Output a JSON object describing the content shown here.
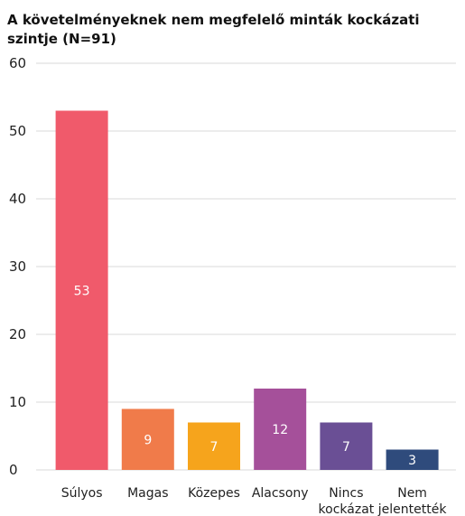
{
  "chart_data": {
    "type": "bar",
    "title": "A követelményeknek nem megfelelő minták kockázati szintje (N=91)",
    "categories": [
      [
        "Súlyos"
      ],
      [
        "Magas"
      ],
      [
        "Közepes"
      ],
      [
        "Alacsony"
      ],
      [
        "Nincs",
        "kockázat"
      ],
      [
        "Nem",
        "jelentették"
      ]
    ],
    "values": [
      53,
      9,
      7,
      12,
      7,
      3
    ],
    "value_labels": [
      "53",
      "9",
      "7",
      "12",
      "7",
      "3"
    ],
    "colors": [
      "#f05a6b",
      "#f07b4a",
      "#f6a41c",
      "#a5509a",
      "#6a4f95",
      "#2f4b7c"
    ],
    "ylim": [
      0,
      60
    ],
    "yticks": [
      0,
      10,
      20,
      30,
      40,
      50,
      60
    ],
    "xlabel": "",
    "ylabel": "",
    "grid": true
  }
}
